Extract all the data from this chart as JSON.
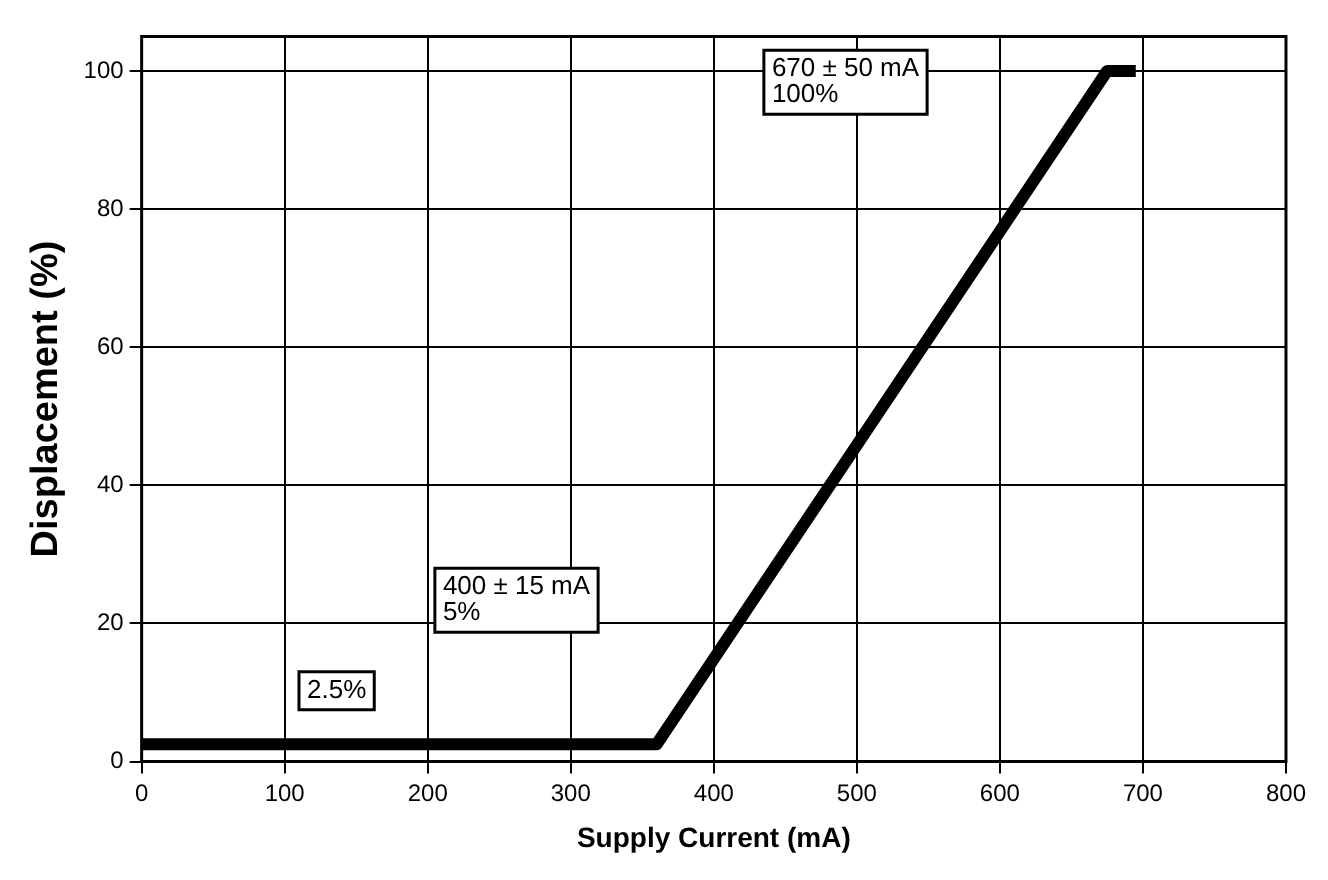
{
  "chart_data": {
    "type": "line",
    "xlabel": "Supply Current (mA)",
    "ylabel": "Displacement (%)",
    "x": [
      0,
      360,
      675,
      695
    ],
    "series": [
      {
        "color": "#000000",
        "values": [
          2.5,
          2.5,
          100,
          100
        ]
      }
    ],
    "xlim": [
      0,
      800
    ],
    "xticks": [
      0,
      100,
      200,
      300,
      400,
      500,
      600,
      700,
      800
    ],
    "ylim": [
      0,
      105
    ],
    "yticks": [
      0,
      20,
      40,
      60,
      80,
      100
    ],
    "grid": true,
    "legend": false,
    "marker": "none",
    "line_style": "solid",
    "annotations": [
      "2.5%",
      "400 ± 15 mA\n5%",
      "670 ± 50 mA\n100%"
    ]
  }
}
